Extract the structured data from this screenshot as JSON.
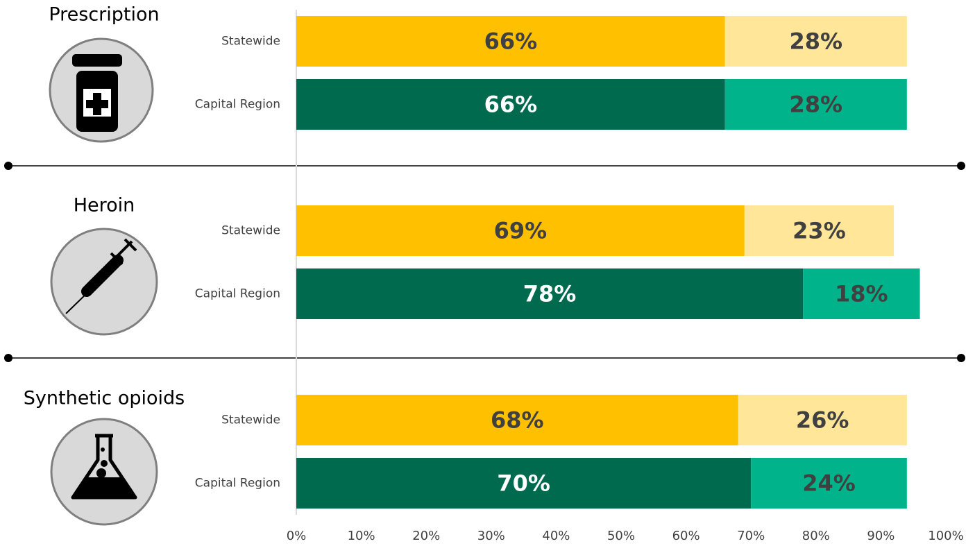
{
  "chart_data": {
    "type": "bar",
    "orientation": "horizontal",
    "stacked": true,
    "xlim": [
      0,
      100
    ],
    "xticks": [
      {
        "value": 0,
        "label": "0%"
      },
      {
        "value": 10,
        "label": "10%"
      },
      {
        "value": 20,
        "label": "20%"
      },
      {
        "value": 30,
        "label": "30%"
      },
      {
        "value": 40,
        "label": "40%"
      },
      {
        "value": 50,
        "label": "50%"
      },
      {
        "value": 60,
        "label": "60%"
      },
      {
        "value": 70,
        "label": "70%"
      },
      {
        "value": 80,
        "label": "80%"
      },
      {
        "value": 90,
        "label": "90%"
      },
      {
        "value": 100,
        "label": "100%"
      }
    ],
    "groups": [
      {
        "title": "Prescription",
        "categories": [
          "Statewide",
          "Capital Region"
        ],
        "series": [
          {
            "colors": [
              "#ffc000",
              "#006a4e"
            ],
            "label_colors": [
              "#404040",
              "#ffffff"
            ],
            "values": [
              66,
              66
            ],
            "value_labels": [
              "66%",
              "66%"
            ]
          },
          {
            "colors": [
              "#ffe699",
              "#00b38a"
            ],
            "label_colors": [
              "#404040",
              "#404040"
            ],
            "values": [
              28,
              28
            ],
            "value_labels": [
              "28%",
              "28%"
            ]
          }
        ]
      },
      {
        "title": "Heroin",
        "categories": [
          "Statewide",
          "Capital Region"
        ],
        "series": [
          {
            "colors": [
              "#ffc000",
              "#006a4e"
            ],
            "label_colors": [
              "#404040",
              "#ffffff"
            ],
            "values": [
              69,
              78
            ],
            "value_labels": [
              "69%",
              "78%"
            ]
          },
          {
            "colors": [
              "#ffe699",
              "#00b38a"
            ],
            "label_colors": [
              "#404040",
              "#404040"
            ],
            "values": [
              23,
              18
            ],
            "value_labels": [
              "23%",
              "18%"
            ]
          }
        ]
      },
      {
        "title": "Synthetic opioids",
        "categories": [
          "Statewide",
          "Capital Region"
        ],
        "series": [
          {
            "colors": [
              "#ffc000",
              "#006a4e"
            ],
            "label_colors": [
              "#404040",
              "#ffffff"
            ],
            "values": [
              68,
              70
            ],
            "value_labels": [
              "68%",
              "70%"
            ]
          },
          {
            "colors": [
              "#ffe699",
              "#00b38a"
            ],
            "label_colors": [
              "#404040",
              "#404040"
            ],
            "values": [
              26,
              24
            ],
            "value_labels": [
              "26%",
              "24%"
            ]
          }
        ]
      }
    ]
  }
}
